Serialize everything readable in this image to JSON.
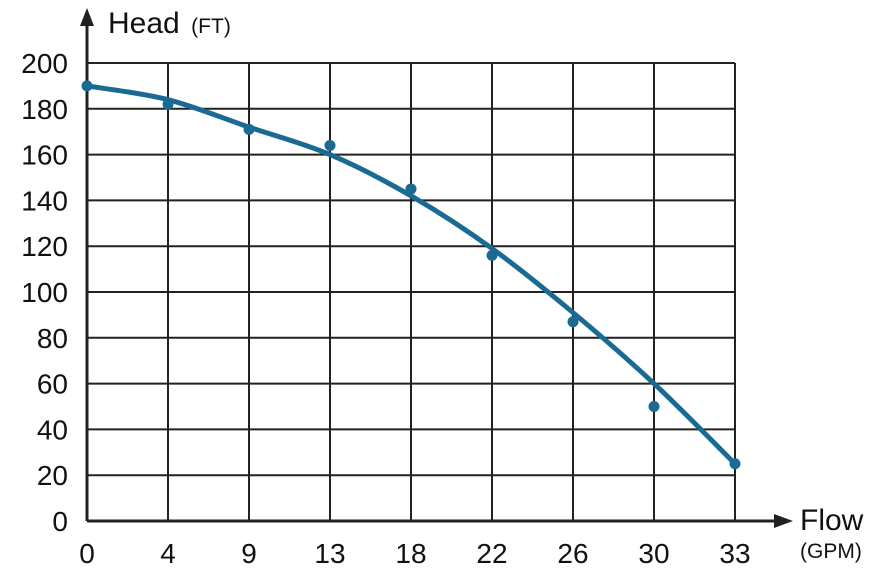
{
  "chart_data": {
    "type": "line",
    "title": "",
    "ylabel": "Head",
    "yunit": "(FT)",
    "xlabel": "Flow",
    "xunit": "(GPM)",
    "x_ticks": [
      "0",
      "4",
      "9",
      "13",
      "18",
      "22",
      "26",
      "30",
      "33"
    ],
    "y_ticks": [
      0,
      20,
      40,
      60,
      80,
      100,
      120,
      140,
      160,
      180,
      200
    ],
    "ylim": [
      0,
      200
    ],
    "grid": true,
    "series": [
      {
        "x": [
          "0",
          "4",
          "9",
          "13",
          "18",
          "22",
          "26",
          "30",
          "33"
        ],
        "points": [
          190,
          182,
          171,
          164,
          145,
          116,
          87,
          50,
          25
        ],
        "curve": [
          190,
          184,
          172,
          160,
          142,
          119,
          91,
          60,
          25
        ]
      }
    ],
    "colors": {
      "line": "#1b6a94",
      "grid": "#222222",
      "axis": "#222222"
    }
  }
}
